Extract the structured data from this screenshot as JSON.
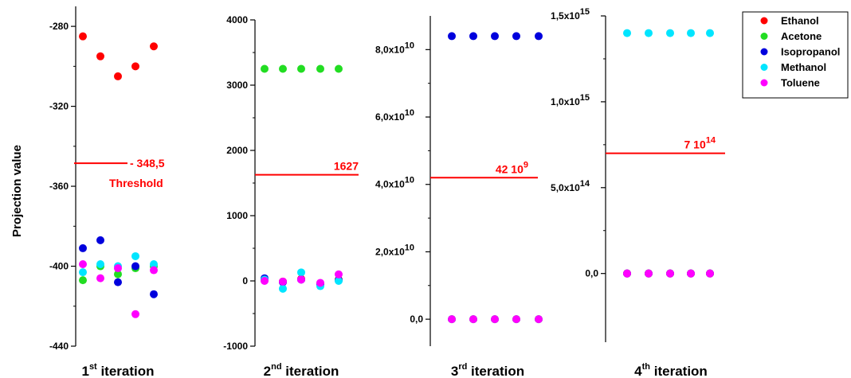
{
  "y_label": "Projection value",
  "legend": [
    {
      "name": "Ethanol",
      "color": "#ff0000"
    },
    {
      "name": "Acetone",
      "color": "#22dd22"
    },
    {
      "name": "Isopropanol",
      "color": "#0000dd"
    },
    {
      "name": "Methanol",
      "color": "#00e5ff"
    },
    {
      "name": "Toluene",
      "color": "#ff00ff"
    }
  ],
  "chart_data": [
    {
      "type": "scatter",
      "xlabel": {
        "num": "1",
        "sup": "st",
        "rest": " iteration"
      },
      "ylim": [
        -440,
        -270
      ],
      "yticks": [
        "-280",
        "-320",
        "-360",
        "-400",
        "-440"
      ],
      "ytick_values": [
        -280,
        -320,
        -360,
        -400,
        -440
      ],
      "x": [
        1,
        2,
        3,
        4,
        5
      ],
      "series": [
        {
          "name": "Ethanol",
          "values": [
            -285,
            -295,
            -305,
            -300,
            -290
          ]
        },
        {
          "name": "Acetone",
          "values": [
            -407,
            -400,
            -404,
            -401,
            -400
          ]
        },
        {
          "name": "Isopropanol",
          "values": [
            -391,
            -387,
            -408,
            -400,
            -414
          ]
        },
        {
          "name": "Methanol",
          "values": [
            -403,
            -399,
            -400,
            -395,
            -399
          ]
        },
        {
          "name": "Toluene",
          "values": [
            -399,
            -406,
            -401,
            -424,
            -402
          ]
        }
      ],
      "threshold": -348.5,
      "threshold_text": "- 348,5",
      "threshold_note": "Threshold"
    },
    {
      "type": "scatter",
      "xlabel": {
        "num": "2",
        "sup": "nd",
        "rest": " iteration"
      },
      "ylim": [
        -1000,
        4000
      ],
      "yticks": [
        "4000",
        "3000",
        "2000",
        "1000",
        "0",
        "-1000"
      ],
      "ytick_values": [
        4000,
        3000,
        2000,
        1000,
        0,
        -1000
      ],
      "x": [
        1,
        2,
        3,
        4,
        5
      ],
      "series": [
        {
          "name": "Ethanol",
          "values": [
            10,
            -10,
            30,
            -40,
            20
          ]
        },
        {
          "name": "Acetone",
          "values": [
            3250,
            3250,
            3250,
            3250,
            3250
          ]
        },
        {
          "name": "Isopropanol",
          "values": [
            40,
            -20,
            20,
            -50,
            10
          ]
        },
        {
          "name": "Methanol",
          "values": [
            20,
            -120,
            130,
            -80,
            0
          ]
        },
        {
          "name": "Toluene",
          "values": [
            0,
            -10,
            20,
            -30,
            100
          ]
        }
      ],
      "threshold": 1627,
      "threshold_text": "1627"
    },
    {
      "type": "scatter",
      "xlabel": {
        "num": "3",
        "sup": "rd",
        "rest": " iteration"
      },
      "ylim": [
        -8000000000,
        90000000000
      ],
      "yticks": [
        {
          "mant": "8,0x10",
          "exp": "10",
          "value": 80000000000
        },
        {
          "mant": "6,0x10",
          "exp": "10",
          "value": 60000000000
        },
        {
          "mant": "4,0x10",
          "exp": "10",
          "value": 40000000000
        },
        {
          "mant": "2,0x10",
          "exp": "10",
          "value": 20000000000
        },
        {
          "mant": "0,0",
          "exp": "",
          "value": 0
        }
      ],
      "x": [
        1,
        2,
        3,
        4,
        5
      ],
      "series": [
        {
          "name": "Ethanol",
          "values": [
            0,
            0,
            0,
            0,
            0
          ]
        },
        {
          "name": "Acetone",
          "values": [
            0,
            0,
            0,
            0,
            0
          ]
        },
        {
          "name": "Isopropanol",
          "values": [
            84000000000,
            84000000000,
            84000000000,
            84000000000,
            84000000000
          ]
        },
        {
          "name": "Methanol",
          "values": [
            0,
            0,
            0,
            0,
            0
          ]
        },
        {
          "name": "Toluene",
          "values": [
            0,
            0,
            0,
            0,
            0
          ]
        }
      ],
      "threshold": 42000000000,
      "threshold_text": "42 10",
      "threshold_exp": "9"
    },
    {
      "type": "scatter",
      "xlabel": {
        "num": "4",
        "sup": "th",
        "rest": " iteration"
      },
      "ylim": [
        -400000000000000,
        1500000000000000
      ],
      "yticks": [
        {
          "mant": "1,5x10",
          "exp": "15",
          "value": 1500000000000000
        },
        {
          "mant": "1,0x10",
          "exp": "15",
          "value": 1000000000000000
        },
        {
          "mant": "5,0x10",
          "exp": "14",
          "value": 500000000000000
        },
        {
          "mant": "0,0",
          "exp": "",
          "value": 0
        }
      ],
      "x": [
        1,
        2,
        3,
        4,
        5
      ],
      "series": [
        {
          "name": "Ethanol",
          "values": [
            0,
            0,
            0,
            0,
            0
          ]
        },
        {
          "name": "Acetone",
          "values": [
            0,
            0,
            0,
            0,
            0
          ]
        },
        {
          "name": "Isopropanol",
          "values": [
            0,
            0,
            0,
            0,
            0
          ]
        },
        {
          "name": "Methanol",
          "values": [
            1400000000000000,
            1400000000000000,
            1400000000000000,
            1400000000000000,
            1400000000000000
          ]
        },
        {
          "name": "Toluene",
          "values": [
            0,
            0,
            0,
            0,
            0
          ]
        }
      ],
      "threshold": 700000000000000,
      "threshold_text": "7 10",
      "threshold_exp": "14"
    }
  ]
}
